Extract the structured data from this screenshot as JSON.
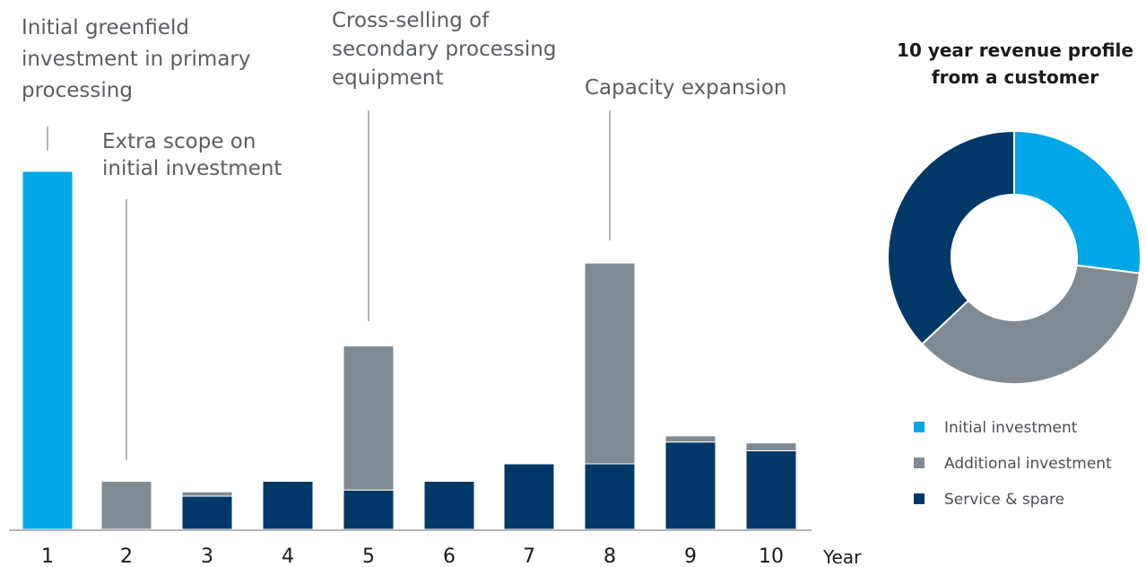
{
  "colors": {
    "initial": "#00a6e6",
    "additional": "#808a93",
    "service": "#003868"
  },
  "annotations": [
    {
      "id": "initial-greenfield",
      "lines": [
        "Initial greenfield",
        "investment in primary",
        "processing"
      ]
    },
    {
      "id": "extra-scope",
      "lines": [
        "Extra scope on",
        "initial investment"
      ]
    },
    {
      "id": "cross-selling",
      "lines": [
        "Cross-selling of",
        "secondary processing",
        "equipment"
      ]
    },
    {
      "id": "capacity-expansion",
      "lines": [
        "Capacity expansion"
      ]
    }
  ],
  "chart_data": [
    {
      "type": "bar",
      "stacked": true,
      "title": "",
      "xlabel": "Year",
      "ylabel": "",
      "categories": [
        "1",
        "2",
        "3",
        "4",
        "5",
        "6",
        "7",
        "8",
        "9",
        "10"
      ],
      "series": [
        {
          "key": "service",
          "values": [
            0,
            0,
            0.38,
            0.55,
            0.45,
            0.55,
            0.75,
            0.75,
            1.0,
            0.9
          ]
        },
        {
          "key": "additional",
          "values": [
            0,
            0.55,
            0.05,
            0,
            1.65,
            0,
            0,
            2.3,
            0.07,
            0.09
          ]
        },
        {
          "key": "initial",
          "values": [
            4.1,
            0,
            0,
            0,
            0,
            0,
            0,
            0,
            0,
            0
          ]
        }
      ],
      "ylim": [
        0,
        4.1
      ],
      "grid": false
    },
    {
      "type": "pie",
      "donut": true,
      "title": "10 year revenue profile\nfrom a customer",
      "labels": [
        "Initial investment",
        "Additional investment",
        "Service & spare"
      ],
      "values": [
        27,
        36,
        37
      ],
      "legend": "bottom"
    }
  ]
}
